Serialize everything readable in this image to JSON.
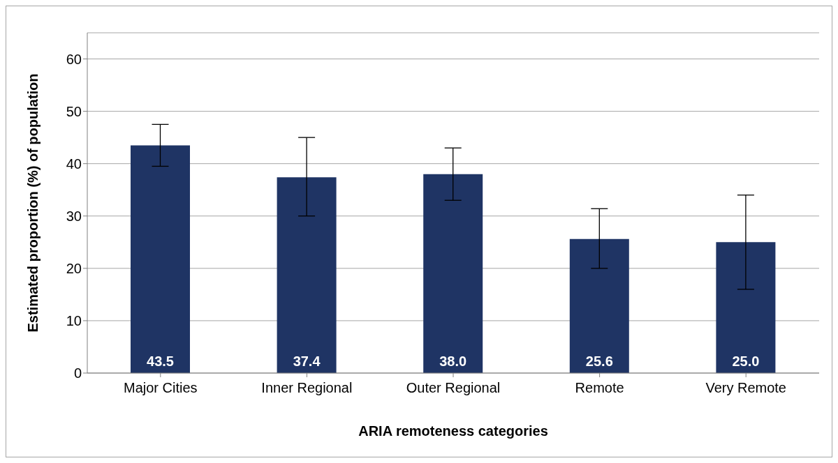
{
  "chart_data": {
    "type": "bar",
    "xlabel": "ARIA remoteness categories",
    "ylabel": "Estimated proportion (%) of population",
    "categories": [
      "Major Cities",
      "Inner Regional",
      "Outer Regional",
      "Remote",
      "Very Remote"
    ],
    "values": [
      43.5,
      37.4,
      38.0,
      25.6,
      25.0
    ],
    "errors": [
      [
        39.5,
        47.5
      ],
      [
        30,
        45
      ],
      [
        33,
        43
      ],
      [
        20,
        31.4
      ],
      [
        16,
        34
      ]
    ],
    "color": "#1f3464",
    "value_labels": [
      "43.5",
      "37.4",
      "38.0",
      "25.6",
      "25.0"
    ],
    "ylim": [
      0,
      65
    ],
    "yticks": [
      0,
      10,
      20,
      30,
      40,
      50,
      60
    ],
    "grid": "y"
  }
}
